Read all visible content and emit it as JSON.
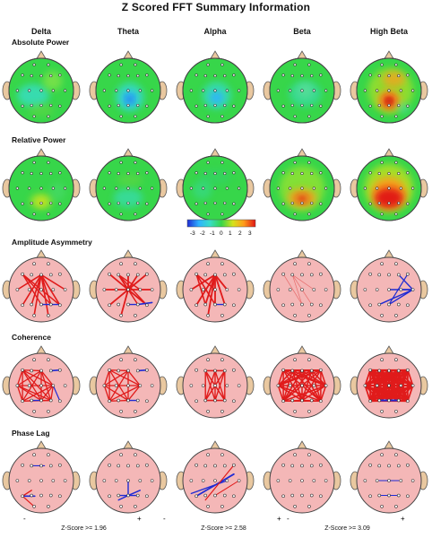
{
  "title": "Z Scored FFT Summary Information",
  "columns": [
    "Delta",
    "Theta",
    "Alpha",
    "Beta",
    "High Beta"
  ],
  "sections": [
    "Absolute Power",
    "Relative Power",
    "Amplitude Asymmetry",
    "Coherence",
    "Phase Lag"
  ],
  "color_scale": {
    "ticks": [
      "-3",
      "-2",
      "-1",
      "0",
      "1",
      "2",
      "3"
    ],
    "colors": [
      "#1f2bd4",
      "#2fb2ff",
      "#39ddc8",
      "#37d64a",
      "#d6e21c",
      "#ff9c1c",
      "#e01515"
    ]
  },
  "legends": [
    {
      "label": "Z-Score >= 1.96",
      "minus": "-",
      "plus": "+"
    },
    {
      "label": "Z-Score >= 2.58",
      "minus": "-",
      "plus": "+"
    },
    {
      "label": "Z-Score >= 3.09",
      "minus": "-",
      "plus": "+"
    }
  ],
  "colors": {
    "head_connectivity": "#f4b7b7",
    "positive_line": "#e01b1b",
    "negative_line": "#1f2bd4",
    "base_green": "#37d64a"
  }
}
